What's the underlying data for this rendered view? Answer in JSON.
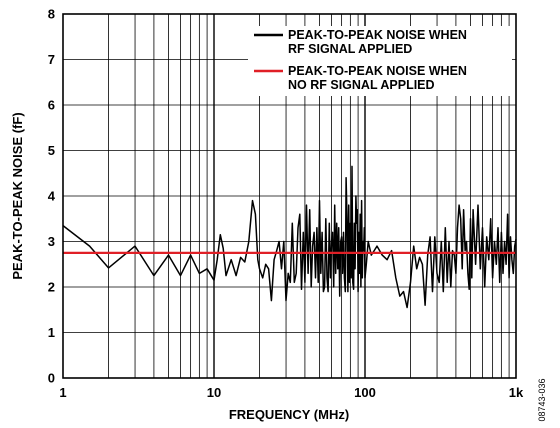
{
  "chart_data": {
    "type": "line",
    "title": "",
    "xlabel": "FREQUENCY (MHz)",
    "ylabel": "PEAK-TO-PEAK NOISE (fF)",
    "x_scale": "log",
    "xlim": [
      1,
      1000
    ],
    "ylim": [
      0,
      8
    ],
    "grid": true,
    "legend_position": "top-right",
    "x_tick_labels": [
      "1",
      "10",
      "100",
      "1k"
    ],
    "x_tick_values": [
      1,
      10,
      100,
      1000
    ],
    "y_tick_labels": [
      "0",
      "1",
      "2",
      "3",
      "4",
      "5",
      "6",
      "7",
      "8"
    ],
    "y_tick_values": [
      0,
      1,
      2,
      3,
      4,
      5,
      6,
      7,
      8
    ],
    "figure_id": "08743-036",
    "series": [
      {
        "name": "PEAK-TO-PEAK NOISE WHEN RF SIGNAL APPLIED",
        "color": "#000000",
        "points": [
          [
            1.0,
            3.35
          ],
          [
            1.5,
            2.9
          ],
          [
            2.0,
            2.42
          ],
          [
            3.0,
            2.9
          ],
          [
            4.0,
            2.25
          ],
          [
            5.0,
            2.7
          ],
          [
            6.0,
            2.25
          ],
          [
            7.0,
            2.7
          ],
          [
            8.0,
            2.3
          ],
          [
            9.0,
            2.4
          ],
          [
            10.0,
            2.15
          ],
          [
            10.5,
            2.6
          ],
          [
            11.0,
            3.15
          ],
          [
            11.5,
            2.85
          ],
          [
            12.0,
            2.25
          ],
          [
            13.0,
            2.6
          ],
          [
            14.0,
            2.25
          ],
          [
            15.0,
            2.65
          ],
          [
            16.0,
            2.55
          ],
          [
            17.0,
            3.0
          ],
          [
            18.0,
            3.9
          ],
          [
            18.8,
            3.6
          ],
          [
            19.5,
            2.6
          ],
          [
            20.0,
            2.4
          ],
          [
            21.0,
            2.2
          ],
          [
            22.0,
            2.5
          ],
          [
            23.0,
            2.4
          ],
          [
            24.0,
            1.7
          ],
          [
            25.0,
            2.6
          ],
          [
            26.0,
            2.8
          ],
          [
            27.0,
            3.0
          ],
          [
            28.0,
            2.4
          ],
          [
            29.0,
            3.0
          ],
          [
            30.0,
            1.7
          ],
          [
            31.0,
            2.3
          ],
          [
            32.0,
            2.1
          ],
          [
            33.0,
            3.4
          ],
          [
            34.0,
            2.1
          ],
          [
            35.0,
            2.3
          ],
          [
            36.0,
            3.3
          ],
          [
            37.0,
            3.6
          ],
          [
            38.0,
            1.95
          ],
          [
            39.0,
            3.2
          ],
          [
            40.0,
            2.1
          ],
          [
            41.0,
            3.8
          ],
          [
            42.0,
            2.3
          ],
          [
            43.0,
            3.7
          ],
          [
            44.0,
            2.0
          ],
          [
            45.0,
            2.9
          ],
          [
            46.0,
            3.2
          ],
          [
            47.0,
            2.2
          ],
          [
            48.0,
            3.3
          ],
          [
            49.0,
            2.1
          ],
          [
            50.0,
            3.9
          ],
          [
            51.0,
            2.3
          ],
          [
            52.0,
            3.2
          ],
          [
            53.0,
            1.9
          ],
          [
            54.0,
            2.0
          ],
          [
            55.0,
            3.5
          ],
          [
            56.0,
            2.2
          ],
          [
            57.0,
            1.9
          ],
          [
            58.0,
            3.4
          ],
          [
            59.0,
            2.2
          ],
          [
            60.0,
            3.0
          ],
          [
            61.0,
            3.2
          ],
          [
            62.0,
            2.0
          ],
          [
            63.0,
            3.8
          ],
          [
            64.0,
            2.3
          ],
          [
            65.0,
            3.4
          ],
          [
            66.0,
            2.4
          ],
          [
            67.0,
            3.3
          ],
          [
            68.0,
            1.8
          ],
          [
            69.0,
            3.0
          ],
          [
            70.0,
            3.1
          ],
          [
            71.0,
            2.3
          ],
          [
            72.0,
            3.2
          ],
          [
            73.0,
            2.2
          ],
          [
            74.0,
            1.9
          ],
          [
            75.0,
            4.4
          ],
          [
            76.0,
            3.5
          ],
          [
            77.0,
            1.9
          ],
          [
            78.0,
            3.8
          ],
          [
            79.0,
            2.1
          ],
          [
            80.0,
            3.4
          ],
          [
            81.0,
            2.2
          ],
          [
            82.0,
            4.65
          ],
          [
            83.0,
            2.1
          ],
          [
            84.0,
            1.95
          ],
          [
            85.0,
            3.4
          ],
          [
            86.0,
            2.4
          ],
          [
            87.0,
            4.0
          ],
          [
            88.0,
            3.4
          ],
          [
            89.0,
            3.7
          ],
          [
            90.0,
            1.9
          ],
          [
            91.0,
            3.2
          ],
          [
            92.0,
            2.3
          ],
          [
            93.0,
            3.6
          ],
          [
            94.0,
            2.0
          ],
          [
            95.0,
            3.9
          ],
          [
            96.0,
            2.2
          ],
          [
            97.0,
            3.0
          ],
          [
            98.0,
            2.8
          ],
          [
            99.0,
            3.3
          ],
          [
            100.0,
            2.2
          ],
          [
            102.0,
            2.5
          ],
          [
            105.0,
            3.0
          ],
          [
            110.0,
            2.7
          ],
          [
            115.0,
            2.8
          ],
          [
            120.0,
            2.9
          ],
          [
            130.0,
            2.7
          ],
          [
            140.0,
            2.6
          ],
          [
            150.0,
            2.8
          ],
          [
            160.0,
            2.2
          ],
          [
            170.0,
            1.8
          ],
          [
            180.0,
            1.9
          ],
          [
            190.0,
            1.55
          ],
          [
            200.0,
            2.1
          ],
          [
            210.0,
            2.9
          ],
          [
            220.0,
            2.4
          ],
          [
            230.0,
            2.65
          ],
          [
            240.0,
            2.5
          ],
          [
            250.0,
            1.6
          ],
          [
            260.0,
            2.7
          ],
          [
            270.0,
            3.1
          ],
          [
            280.0,
            1.9
          ],
          [
            290.0,
            3.1
          ],
          [
            300.0,
            2.3
          ],
          [
            310.0,
            2.1
          ],
          [
            320.0,
            3.0
          ],
          [
            330.0,
            1.9
          ],
          [
            340.0,
            3.3
          ],
          [
            350.0,
            2.1
          ],
          [
            360.0,
            3.0
          ],
          [
            370.0,
            2.0
          ],
          [
            380.0,
            2.8
          ],
          [
            390.0,
            2.7
          ],
          [
            400.0,
            2.3
          ],
          [
            410.0,
            3.3
          ],
          [
            420.0,
            3.8
          ],
          [
            430.0,
            3.5
          ],
          [
            440.0,
            2.4
          ],
          [
            450.0,
            3.7
          ],
          [
            460.0,
            2.8
          ],
          [
            470.0,
            3.0
          ],
          [
            480.0,
            2.3
          ],
          [
            490.0,
            1.95
          ],
          [
            500.0,
            3.5
          ],
          [
            510.0,
            2.2
          ],
          [
            520.0,
            3.7
          ],
          [
            540.0,
            2.5
          ],
          [
            560.0,
            3.8
          ],
          [
            580.0,
            2.4
          ],
          [
            600.0,
            3.3
          ],
          [
            620.0,
            2.0
          ],
          [
            640.0,
            3.1
          ],
          [
            660.0,
            2.6
          ],
          [
            680.0,
            3.5
          ],
          [
            700.0,
            2.2
          ],
          [
            720.0,
            3.0
          ],
          [
            740.0,
            2.5
          ],
          [
            760.0,
            3.3
          ],
          [
            780.0,
            2.1
          ],
          [
            800.0,
            3.2
          ],
          [
            820.0,
            2.3
          ],
          [
            840.0,
            3.0
          ],
          [
            860.0,
            2.5
          ],
          [
            880.0,
            3.6
          ],
          [
            900.0,
            2.2
          ],
          [
            920.0,
            3.1
          ],
          [
            940.0,
            2.6
          ],
          [
            960.0,
            2.3
          ],
          [
            980.0,
            2.9
          ],
          [
            1000.0,
            3.05
          ]
        ]
      },
      {
        "name": "PEAK-TO-PEAK NOISE WHEN NO RF SIGNAL APPLIED",
        "color": "#e01f26",
        "points": [
          [
            1,
            2.75
          ],
          [
            1000,
            2.75
          ]
        ]
      }
    ]
  }
}
